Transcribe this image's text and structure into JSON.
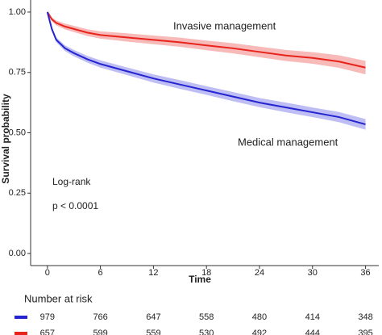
{
  "chart_data": {
    "type": "survival",
    "x_label": "Time",
    "y_label": "Survival probability",
    "xlim": [
      -1.9,
      37.5
    ],
    "ylim": [
      -0.05,
      1.05
    ],
    "xticks": [
      0,
      6,
      12,
      18,
      24,
      30,
      36
    ],
    "yticks": [
      {
        "value": 0,
        "label": "0.00"
      },
      {
        "value": 0.25,
        "label": "0.25"
      },
      {
        "value": 0.5,
        "label": "0.50"
      },
      {
        "value": 0.75,
        "label": "0.75"
      },
      {
        "value": 1,
        "label": "1.00"
      }
    ],
    "x": [
      0,
      0.5,
      1,
      2,
      3,
      4.5,
      6,
      9,
      12,
      15,
      18,
      21,
      24,
      27,
      30,
      33,
      36
    ],
    "series": [
      {
        "name": "Invasive management",
        "color": "#e8231b",
        "band_color": "#f4a3a0",
        "values": [
          1,
          0.97,
          0.955,
          0.94,
          0.93,
          0.915,
          0.905,
          0.895,
          0.885,
          0.875,
          0.862,
          0.85,
          0.835,
          0.82,
          0.81,
          0.795,
          0.77
        ],
        "lower": [
          1,
          0.962,
          0.945,
          0.928,
          0.917,
          0.901,
          0.89,
          0.878,
          0.867,
          0.856,
          0.842,
          0.829,
          0.813,
          0.797,
          0.786,
          0.769,
          0.742
        ],
        "upper": [
          1,
          0.978,
          0.965,
          0.952,
          0.943,
          0.929,
          0.92,
          0.912,
          0.903,
          0.894,
          0.882,
          0.871,
          0.857,
          0.843,
          0.834,
          0.821,
          0.798
        ]
      },
      {
        "name": "Medical management",
        "color": "#2424d0",
        "band_color": "#a8a8f0",
        "values": [
          1,
          0.93,
          0.885,
          0.85,
          0.83,
          0.805,
          0.785,
          0.755,
          0.725,
          0.7,
          0.675,
          0.65,
          0.625,
          0.605,
          0.585,
          0.565,
          0.535
        ],
        "lower": [
          1,
          0.922,
          0.875,
          0.838,
          0.817,
          0.791,
          0.77,
          0.739,
          0.708,
          0.682,
          0.657,
          0.631,
          0.606,
          0.585,
          0.565,
          0.544,
          0.513
        ],
        "upper": [
          1,
          0.938,
          0.895,
          0.862,
          0.843,
          0.819,
          0.8,
          0.771,
          0.742,
          0.718,
          0.693,
          0.669,
          0.644,
          0.625,
          0.605,
          0.586,
          0.557
        ]
      }
    ],
    "annotations": [
      "Log-rank",
      "p < 0.0001"
    ],
    "risk_table": {
      "title": "Number at risk",
      "rows": [
        {
          "color": "#2424d0",
          "values": [
            979,
            766,
            647,
            558,
            480,
            414,
            348
          ]
        },
        {
          "color": "#e8231b",
          "values": [
            657,
            599,
            559,
            530,
            492,
            444,
            395
          ]
        }
      ]
    }
  }
}
